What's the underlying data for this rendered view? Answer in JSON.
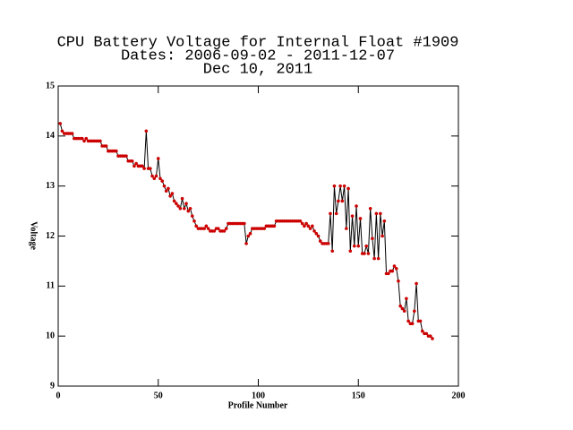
{
  "chart_data": {
    "type": "line",
    "title": [
      "CPU Battery Voltage for Internal Float #1909",
      "Dates:  2006-09-02 -  2011-12-07",
      "Dec 10, 2011"
    ],
    "xlabel": "Profile Number",
    "ylabel": "Voltage",
    "xlim": [
      0,
      200
    ],
    "xticks": [
      0,
      50,
      100,
      150,
      200
    ],
    "ylim": [
      9,
      15
    ],
    "yticks": [
      9,
      10,
      11,
      12,
      13,
      14,
      15
    ],
    "x": [
      1,
      2,
      3,
      4,
      5,
      6,
      7,
      8,
      9,
      10,
      11,
      12,
      13,
      14,
      15,
      16,
      17,
      18,
      19,
      20,
      21,
      22,
      23,
      24,
      25,
      26,
      27,
      28,
      29,
      30,
      31,
      32,
      33,
      34,
      35,
      36,
      37,
      38,
      39,
      40,
      41,
      42,
      43,
      44,
      45,
      46,
      47,
      48,
      49,
      50,
      51,
      52,
      53,
      54,
      55,
      56,
      57,
      58,
      59,
      60,
      61,
      62,
      63,
      64,
      65,
      66,
      67,
      68,
      69,
      70,
      71,
      72,
      73,
      74,
      75,
      76,
      77,
      78,
      79,
      80,
      81,
      82,
      83,
      84,
      85,
      86,
      87,
      88,
      89,
      90,
      91,
      92,
      93,
      94,
      95,
      96,
      97,
      98,
      99,
      100,
      101,
      102,
      103,
      104,
      105,
      106,
      107,
      108,
      109,
      110,
      111,
      112,
      113,
      114,
      115,
      116,
      117,
      118,
      119,
      120,
      121,
      122,
      123,
      124,
      125,
      126,
      127,
      128,
      129,
      130,
      131,
      132,
      133,
      134,
      135,
      136,
      137,
      138,
      139,
      140,
      141,
      142,
      143,
      144,
      145,
      146,
      147,
      148,
      149,
      150,
      151,
      152,
      153,
      154,
      155,
      156,
      157,
      158,
      159,
      160,
      161,
      162,
      163,
      164,
      165,
      166,
      167,
      168,
      169,
      170,
      171,
      172,
      173,
      174,
      175,
      176,
      177,
      178,
      179,
      180,
      181,
      182,
      183,
      184,
      185,
      186,
      187
    ],
    "series": [
      {
        "name": "Voltage",
        "color": "#000000",
        "marker_color": "#cc0000",
        "values": [
          14.25,
          14.1,
          14.05,
          14.05,
          14.05,
          14.05,
          14.05,
          13.95,
          13.95,
          13.95,
          13.95,
          13.95,
          13.9,
          13.95,
          13.9,
          13.9,
          13.9,
          13.9,
          13.9,
          13.9,
          13.9,
          13.8,
          13.8,
          13.8,
          13.7,
          13.7,
          13.7,
          13.7,
          13.7,
          13.6,
          13.6,
          13.6,
          13.6,
          13.6,
          13.5,
          13.5,
          13.5,
          13.4,
          13.45,
          13.4,
          13.4,
          13.4,
          13.35,
          14.1,
          13.35,
          13.35,
          13.2,
          13.15,
          13.2,
          13.55,
          13.15,
          13.1,
          13.0,
          12.9,
          12.95,
          12.8,
          12.85,
          12.7,
          12.65,
          12.6,
          12.55,
          12.75,
          12.55,
          12.65,
          12.5,
          12.55,
          12.4,
          12.3,
          12.2,
          12.15,
          12.15,
          12.15,
          12.15,
          12.2,
          12.15,
          12.1,
          12.1,
          12.1,
          12.15,
          12.15,
          12.1,
          12.1,
          12.1,
          12.15,
          12.25,
          12.25,
          12.25,
          12.25,
          12.25,
          12.25,
          12.25,
          12.25,
          12.25,
          11.85,
          12.0,
          12.05,
          12.15,
          12.15,
          12.15,
          12.15,
          12.15,
          12.15,
          12.15,
          12.2,
          12.2,
          12.2,
          12.2,
          12.2,
          12.3,
          12.3,
          12.3,
          12.3,
          12.3,
          12.3,
          12.3,
          12.3,
          12.3,
          12.3,
          12.3,
          12.3,
          12.3,
          12.25,
          12.2,
          12.25,
          12.2,
          12.15,
          12.2,
          12.1,
          12.05,
          12.0,
          11.9,
          11.85,
          11.85,
          11.85,
          11.85,
          12.45,
          11.7,
          13.0,
          12.45,
          12.7,
          13.0,
          12.7,
          13.0,
          12.15,
          12.95,
          11.7,
          12.4,
          11.8,
          12.6,
          11.8,
          12.35,
          11.65,
          11.65,
          11.8,
          11.65,
          12.55,
          11.95,
          11.55,
          12.45,
          11.55,
          12.45,
          12.0,
          12.3,
          11.25,
          11.25,
          11.3,
          11.3,
          11.4,
          11.35,
          11.1,
          10.6,
          10.55,
          10.5,
          10.75,
          10.3,
          10.25,
          10.25,
          10.5,
          11.05,
          10.3,
          10.3,
          10.1,
          10.05,
          10.05,
          10.0,
          10.0,
          9.95
        ]
      }
    ]
  }
}
